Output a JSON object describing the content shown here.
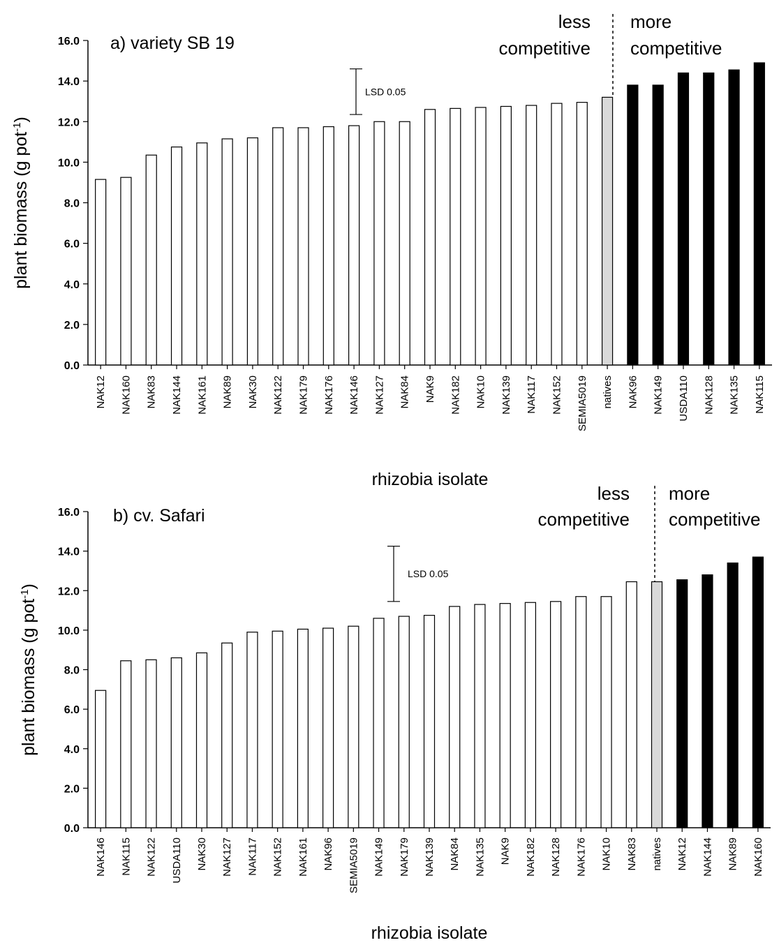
{
  "chart_data": [
    {
      "type": "bar",
      "title": "a) variety SB 19",
      "xlabel": "rhizobia isolate",
      "ylabel": "plant biomass (g pot",
      "ylabel_sup": "-1",
      "ylabel_close": ")",
      "ylim": [
        0,
        16
      ],
      "yticks": [
        "0.0",
        "2.0",
        "4.0",
        "6.0",
        "8.0",
        "10.0",
        "12.0",
        "14.0",
        "16.0"
      ],
      "categories": [
        "NAK12",
        "NAK160",
        "NAK83",
        "NAK144",
        "NAK161",
        "NAK89",
        "NAK30",
        "NAK122",
        "NAK179",
        "NAK176",
        "NAK146",
        "NAK127",
        "NAK84",
        "NAK9",
        "NAK182",
        "NAK10",
        "NAK139",
        "NAK117",
        "NAK152",
        "SEMIA5019",
        "natives",
        "NAK96",
        "NAK149",
        "USDA110",
        "NAK128",
        "NAK135",
        "NAK115"
      ],
      "values": [
        9.15,
        9.25,
        10.35,
        10.75,
        10.95,
        11.15,
        11.2,
        11.7,
        11.7,
        11.75,
        11.8,
        12.0,
        12.0,
        12.6,
        12.65,
        12.7,
        12.75,
        12.8,
        12.9,
        12.95,
        13.2,
        13.8,
        13.8,
        14.4,
        14.4,
        14.55,
        14.9
      ],
      "groups": [
        "less",
        "less",
        "less",
        "less",
        "less",
        "less",
        "less",
        "less",
        "less",
        "less",
        "less",
        "less",
        "less",
        "less",
        "less",
        "less",
        "less",
        "less",
        "less",
        "less",
        "native",
        "more",
        "more",
        "more",
        "more",
        "more",
        "more"
      ],
      "lsd": {
        "label": "LSD 0.05",
        "low": 12.35,
        "high": 14.6,
        "position_index": 10.1
      },
      "less_label": [
        "less",
        "competitive"
      ],
      "more_label": [
        "more",
        "competitive"
      ]
    },
    {
      "type": "bar",
      "title": "b) cv. Safari",
      "xlabel": "rhizobia isolate",
      "ylabel": "plant biomass (g pot",
      "ylabel_sup": "-1",
      "ylabel_close": ")",
      "ylim": [
        0,
        16
      ],
      "yticks": [
        "0.0",
        "2.0",
        "4.0",
        "6.0",
        "8.0",
        "10.0",
        "12.0",
        "14.0",
        "16.0"
      ],
      "categories": [
        "NAK146",
        "NAK115",
        "NAK122",
        "USDA110",
        "NAK30",
        "NAK127",
        "NAK117",
        "NAK152",
        "NAK161",
        "NAK96",
        "SEMIA5019",
        "NAK149",
        "NAK179",
        "NAK139",
        "NAK84",
        "NAK135",
        "NAK9",
        "NAK182",
        "NAK128",
        "NAK176",
        "NAK10",
        "NAK83",
        "natives",
        "NAK12",
        "NAK144",
        "NAK89",
        "NAK160"
      ],
      "values": [
        6.95,
        8.45,
        8.5,
        8.6,
        8.85,
        9.35,
        9.9,
        9.95,
        10.05,
        10.1,
        10.2,
        10.6,
        10.7,
        10.75,
        11.2,
        11.3,
        11.35,
        11.4,
        11.45,
        11.7,
        11.7,
        12.45,
        12.45,
        12.55,
        12.8,
        13.4,
        13.7
      ],
      "groups": [
        "less",
        "less",
        "less",
        "less",
        "less",
        "less",
        "less",
        "less",
        "less",
        "less",
        "less",
        "less",
        "less",
        "less",
        "less",
        "less",
        "less",
        "less",
        "less",
        "less",
        "less",
        "less",
        "native",
        "more",
        "more",
        "more",
        "more"
      ],
      "lsd": {
        "label": "LSD 0.05",
        "low": 11.45,
        "high": 14.25,
        "position_index": 11.6
      },
      "less_label": [
        "less",
        "competitive"
      ],
      "more_label": [
        "more",
        "competitive"
      ]
    }
  ],
  "colors": {
    "less": "#ffffff",
    "native": "#d9d9d9",
    "more": "#000000",
    "outline": "#000000"
  }
}
